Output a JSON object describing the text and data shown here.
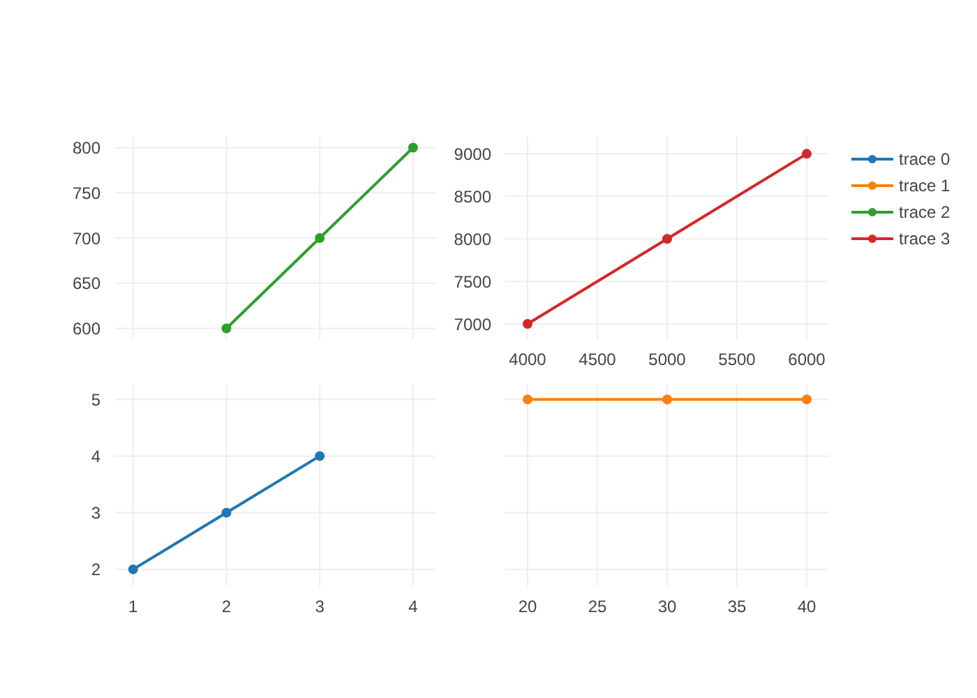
{
  "chart_data": [
    {
      "type": "line",
      "series": [
        {
          "name": "trace 2",
          "color": "#2ca02c",
          "x": [
            2,
            3,
            4
          ],
          "values": [
            600,
            700,
            800
          ]
        }
      ],
      "xlim": [
        0.8,
        4.24
      ],
      "xticks": [
        1,
        2,
        3,
        4
      ],
      "ylim": [
        588,
        812
      ],
      "yticks": [
        600,
        650,
        700,
        750,
        800
      ],
      "tick_labels": "y",
      "grid": true,
      "marker": "circle",
      "line_style": "solid",
      "legend": "top right"
    },
    {
      "type": "line",
      "series": [
        {
          "name": "trace 3",
          "color": "#d62728",
          "x": [
            4000,
            5000,
            6000
          ],
          "values": [
            7000,
            8000,
            9000
          ]
        }
      ],
      "xlim": [
        3840,
        6160
      ],
      "xticks": [
        4000,
        4500,
        5000,
        5500,
        6000
      ],
      "ylim": [
        6820,
        9200
      ],
      "yticks": [
        7000,
        7500,
        8000,
        8500,
        9000
      ],
      "grid": true,
      "marker": "circle",
      "line_style": "solid",
      "legend": "right"
    },
    {
      "type": "line",
      "series": [
        {
          "name": "trace 0",
          "color": "#1f77b4",
          "x": [
            1,
            2,
            3
          ],
          "values": [
            2,
            3,
            4
          ]
        }
      ],
      "xlim": [
        0.8,
        4.24
      ],
      "xticks": [
        1,
        2,
        3,
        4
      ],
      "ylim": [
        1.7,
        5.25
      ],
      "yticks": [
        2,
        3,
        4,
        5
      ],
      "grid": true,
      "marker": "circle",
      "line_style": "solid",
      "legend": "top right"
    },
    {
      "type": "line",
      "series": [
        {
          "name": "trace 1",
          "color": "#ff7f0e",
          "x": [
            20,
            30,
            40
          ],
          "values": [
            5,
            5,
            5
          ]
        }
      ],
      "xlim": [
        18.4,
        41.6
      ],
      "xticks": [
        20,
        25,
        30,
        35,
        40
      ],
      "ylim": [
        1.7,
        5.25
      ],
      "yticks": [
        2,
        3,
        4,
        5
      ],
      "tick_labels": "x",
      "grid": true,
      "marker": "circle",
      "line_style": "solid",
      "legend": "top right"
    }
  ]
}
